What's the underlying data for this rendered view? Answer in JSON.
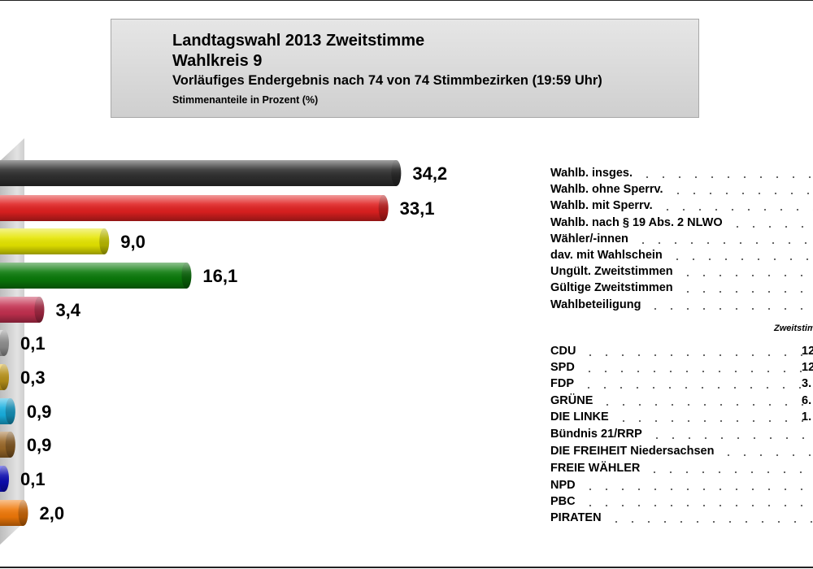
{
  "header": {
    "title": "Landtagswahl 2013 Zweitstimme",
    "district": "Wahlkreis 9",
    "status": "Vorläufiges Endergebnis nach 74 von 74 Stimmbezirken (19:59 Uhr)",
    "unit_note": "Stimmenanteile in Prozent (%)"
  },
  "chart_data": {
    "type": "bar",
    "orientation": "horizontal",
    "categories": [
      "CDU",
      "SPD",
      "FDP",
      "GRÜNE",
      "DIE LINKE",
      "Bündnis 21/RRP",
      "DIE FREIHEIT Niedersachsen",
      "FREIE WÄHLER",
      "NPD",
      "PBC",
      "PIRATEN"
    ],
    "values": [
      34.2,
      33.1,
      9.0,
      16.1,
      3.4,
      0.1,
      0.3,
      0.9,
      0.9,
      0.1,
      2.0
    ],
    "value_labels": [
      "34,2",
      "33,1",
      "9,0",
      "16,1",
      "3,4",
      "0,1",
      "0,3",
      "0,9",
      "0,9",
      "0,1",
      "2,0"
    ],
    "colors": [
      "#303030",
      "#e02020",
      "#e6e600",
      "#0a7a0a",
      "#c43050",
      "#b4b4b4",
      "#e8b820",
      "#18b0e0",
      "#9a6828",
      "#1010e0",
      "#f07808"
    ]
  },
  "stats": {
    "rows": [
      "Wahlb. insges.",
      "Wahlb. ohne Sperrv.",
      "Wahlb. mit Sperrv.",
      "Wahlb. nach § 19 Abs. 2 NLWO",
      "Wähler/-innen",
      "dav. mit Wahlschein",
      "Ungült. Zweitstimmen",
      "Gültige Zweitstimmen",
      "Wahlbeteiligung"
    ]
  },
  "party_table": {
    "column_label": "Zweitstim",
    "rows": [
      {
        "name": "CDU",
        "value": "12."
      },
      {
        "name": "SPD",
        "value": "12."
      },
      {
        "name": "FDP",
        "value": "3."
      },
      {
        "name": "GRÜNE",
        "value": "6."
      },
      {
        "name": "DIE LINKE",
        "value": "1."
      },
      {
        "name": "Bündnis 21/RRP",
        "value": ""
      },
      {
        "name": "DIE FREIHEIT Niedersachsen",
        "value": ""
      },
      {
        "name": "FREIE WÄHLER",
        "value": ""
      },
      {
        "name": "NPD",
        "value": ""
      },
      {
        "name": "PBC",
        "value": ""
      },
      {
        "name": "PIRATEN",
        "value": ""
      }
    ]
  }
}
